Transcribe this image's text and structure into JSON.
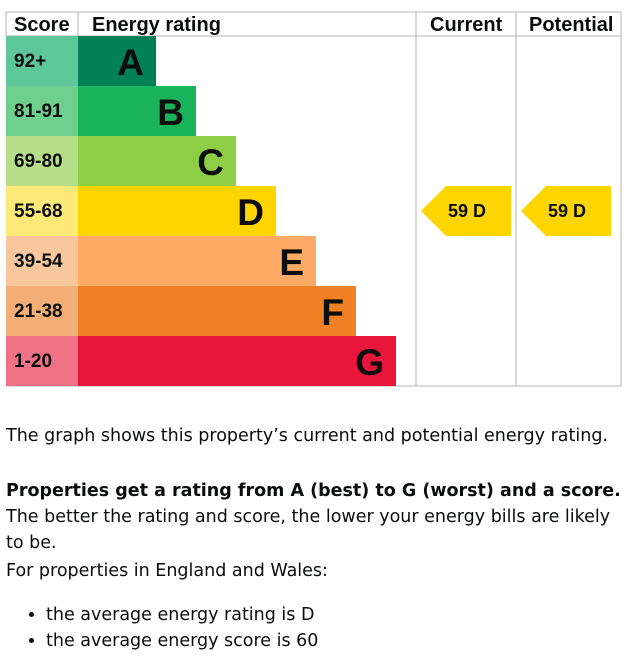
{
  "chart_data": {
    "type": "bar",
    "headers": {
      "score": "Score",
      "rating": "Energy rating",
      "current": "Current",
      "potential": "Potential"
    },
    "bands": [
      {
        "score_range": "92+",
        "letter": "A",
        "color": "#008054",
        "score_color": "#5ec79a"
      },
      {
        "score_range": "81-91",
        "letter": "B",
        "color": "#19b459",
        "score_color": "#6fcf8e"
      },
      {
        "score_range": "69-80",
        "letter": "C",
        "color": "#8dce46",
        "score_color": "#b6dd88"
      },
      {
        "score_range": "55-68",
        "letter": "D",
        "color": "#ffd500",
        "score_color": "#fde978"
      },
      {
        "score_range": "39-54",
        "letter": "E",
        "color": "#fcaa65",
        "score_color": "#f8c89c"
      },
      {
        "score_range": "21-38",
        "letter": "F",
        "color": "#ef8023",
        "score_color": "#f3ad75"
      },
      {
        "score_range": "1-20",
        "letter": "G",
        "color": "#e9153b",
        "score_color": "#ef7186"
      }
    ],
    "current": {
      "score": 59,
      "letter": "D",
      "label": "59  D"
    },
    "potential": {
      "score": 59,
      "letter": "D",
      "label": "59  D"
    },
    "arrow_color": "#ffd500"
  },
  "description": {
    "intro": "The graph shows this property’s current and potential energy rating.",
    "bold_sentence": "Properties get a rating from A (best) to G (worst) and a score.",
    "rest_sentence": " The better the rating and score, the lower your energy bills are likely to be.",
    "region_intro": "For properties in England and Wales:",
    "bullets": [
      "the average energy rating is D",
      "the average energy score is 60"
    ]
  }
}
